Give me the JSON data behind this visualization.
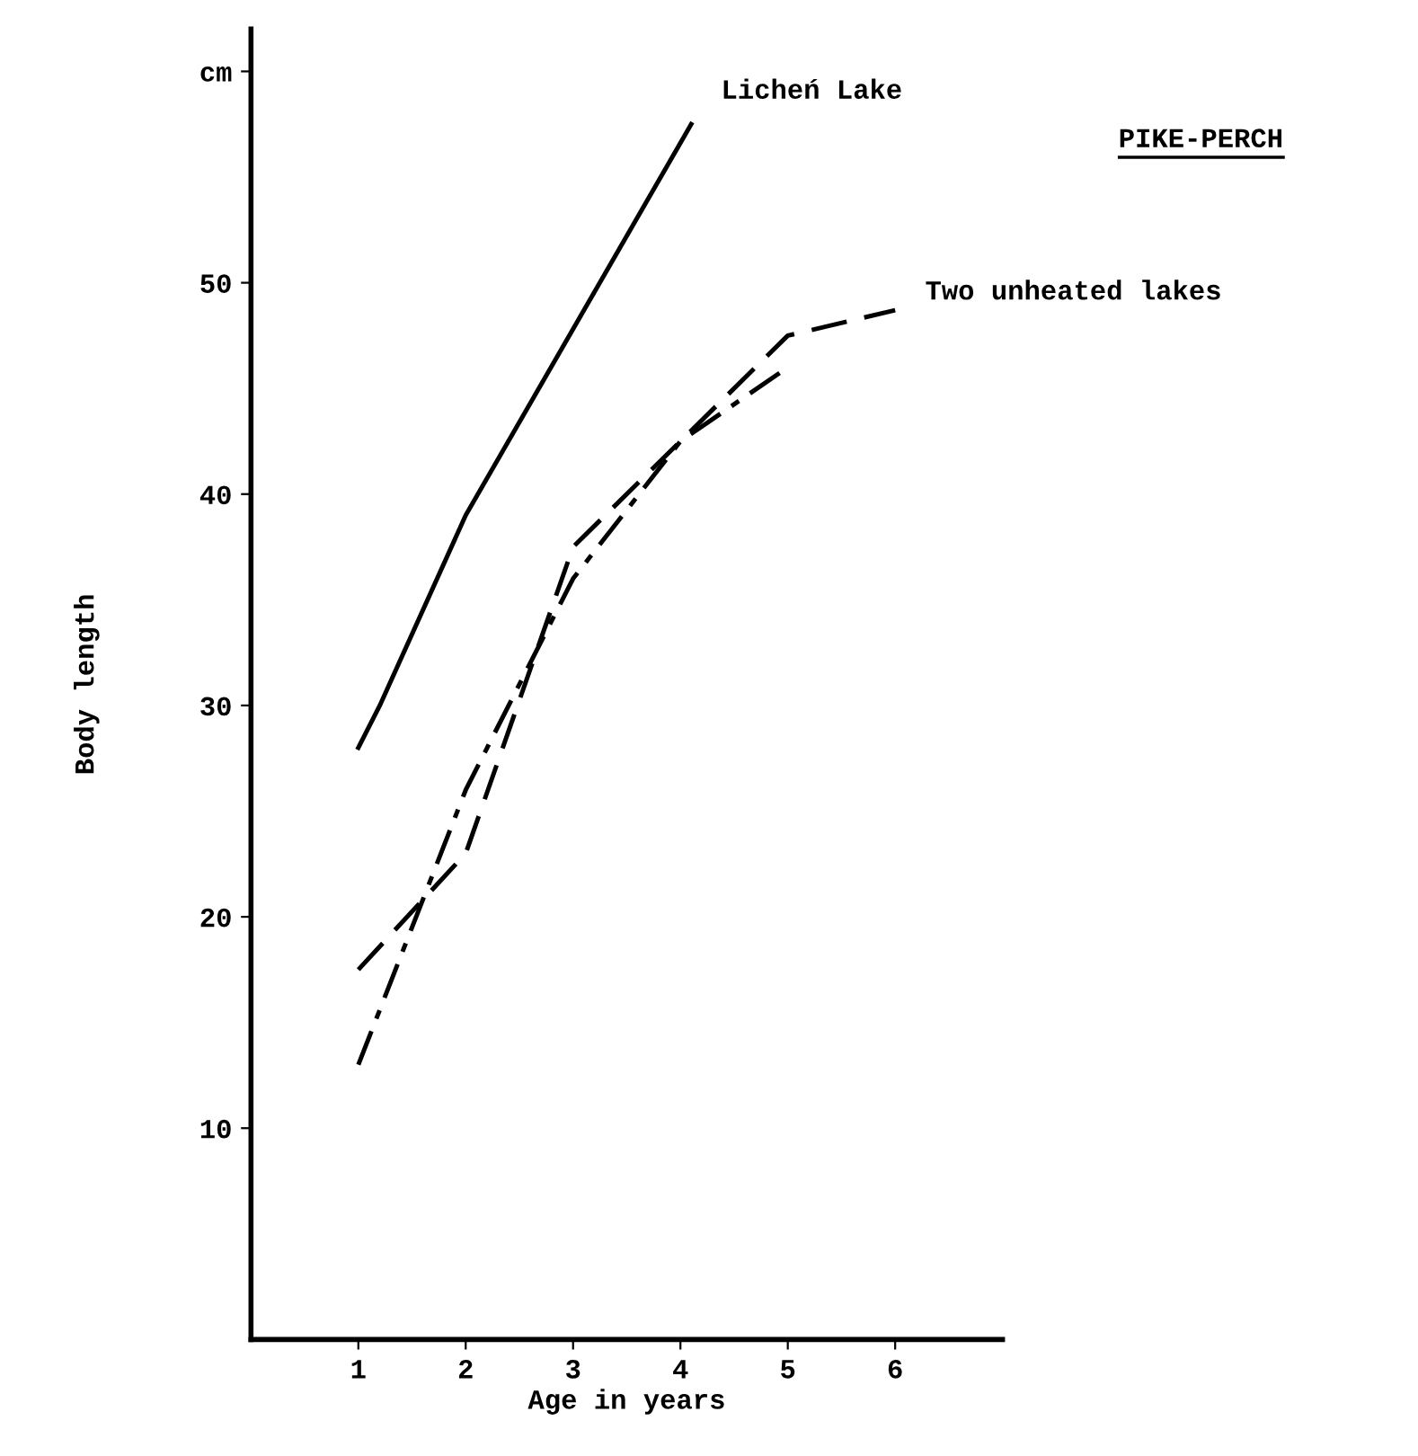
{
  "chart_data": {
    "type": "line",
    "title": "PIKE-PERCH",
    "xlabel": "Age in years",
    "ylabel": "Body length",
    "series": [
      {
        "name": "Licheń Lake",
        "color": "#000000",
        "line_style": "solid",
        "x": [
          1,
          1.2,
          2,
          4.1
        ],
        "values": [
          28,
          30,
          39,
          57.5
        ]
      },
      {
        "name": "Two unheated lakes",
        "color": "#000000",
        "line_style": "dashed",
        "x": [
          1,
          2,
          3,
          4,
          5,
          6
        ],
        "values": [
          17.5,
          23,
          37.5,
          42.5,
          47.5,
          48.7
        ]
      },
      {
        "color": "#000000",
        "line_style": "dashdot",
        "x": [
          1,
          2,
          3,
          4,
          5
        ],
        "values": [
          13,
          26,
          36,
          42.5,
          46
        ]
      }
    ],
    "xlim": [
      0,
      7
    ],
    "ylim": [
      0,
      62
    ],
    "xticks": [
      1,
      2,
      3,
      4,
      5,
      6
    ],
    "yticks": [
      10,
      20,
      30,
      40,
      50,
      {
        "value": 60,
        "label": "cm"
      }
    ],
    "grid": false,
    "legend": false,
    "marker": "none"
  }
}
